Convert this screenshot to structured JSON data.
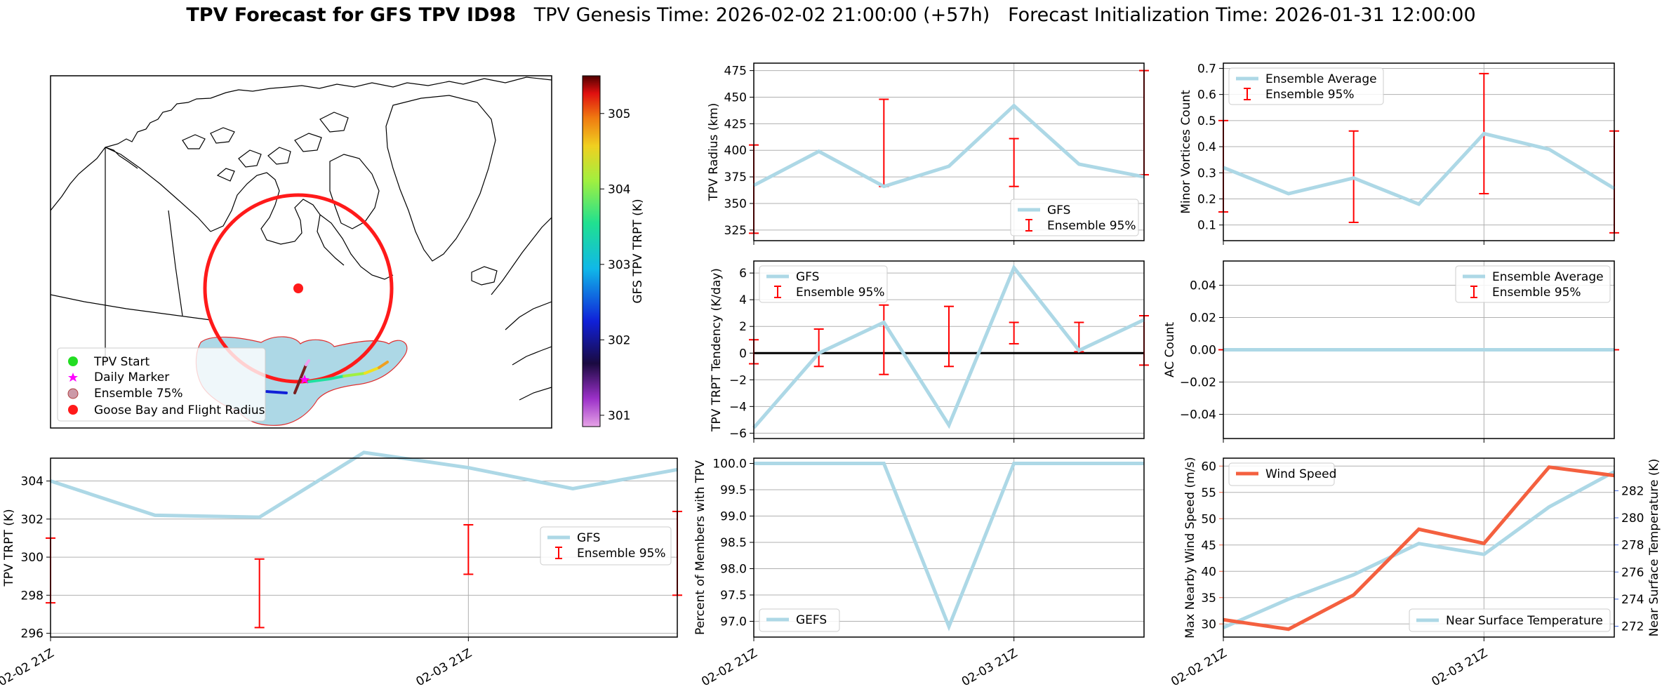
{
  "title": {
    "main": "TPV Forecast for GFS TPV ID98",
    "genesis": "TPV Genesis Time: 2026-02-02 21:00:00 (+57h)",
    "init": "Forecast Initialization Time: 2026-01-31 12:00:00"
  },
  "colors": {
    "gfs": "#add8e6",
    "ens": "#ff0000",
    "wind": "#f4603f",
    "temp_axis": "#4169e1",
    "zero": "#000000"
  },
  "chart_data": [
    {
      "id": "map",
      "type": "map",
      "legend": [
        "TPV Start",
        "Daily Marker",
        "Ensemble 75%",
        "Goose Bay and Flight Radius"
      ],
      "colorbar": {
        "label": "GFS TPV TRPT (K)",
        "range": [
          300.85,
          305.5
        ],
        "ticks": [
          "301",
          "302",
          "303",
          "304",
          "305"
        ]
      }
    },
    {
      "id": "radius",
      "type": "line",
      "ylabel": "TPV Radius (km)",
      "ylim": [
        315,
        482
      ],
      "yticks": [
        "325",
        "350",
        "375",
        "400",
        "425",
        "450",
        "475"
      ],
      "x": [
        0,
        1,
        2,
        3,
        4,
        5,
        6
      ],
      "series": [
        {
          "name": "GFS",
          "values": [
            367,
            399,
            366,
            385,
            442,
            387,
            375
          ]
        }
      ],
      "errorbars": {
        "name": "Ensemble 95%",
        "x": [
          0,
          2,
          4,
          6
        ],
        "low": [
          322,
          366,
          366,
          377
        ],
        "high": [
          405,
          448,
          411,
          475
        ]
      },
      "legend": [
        "GFS",
        "Ensemble 95%"
      ]
    },
    {
      "id": "minor",
      "type": "line",
      "ylabel": "Minor Vortices Count",
      "ylim": [
        0.04,
        0.72
      ],
      "yticks": [
        "0.1",
        "0.2",
        "0.3",
        "0.4",
        "0.5",
        "0.6",
        "0.7"
      ],
      "x": [
        0,
        1,
        2,
        3,
        4,
        5,
        6
      ],
      "series": [
        {
          "name": "Ensemble Average",
          "values": [
            0.32,
            0.22,
            0.28,
            0.18,
            0.45,
            0.39,
            0.24
          ]
        }
      ],
      "errorbars": {
        "name": "Ensemble 95%",
        "x": [
          0,
          2,
          4,
          6
        ],
        "low": [
          0.15,
          0.11,
          0.22,
          0.07
        ],
        "high": [
          0.5,
          0.46,
          0.68,
          0.46
        ]
      },
      "legend": [
        "Ensemble Average",
        "Ensemble 95%"
      ]
    },
    {
      "id": "tendency",
      "type": "line",
      "ylabel": "TPV TRPT Tendency (K/day)",
      "ylim": [
        -6.4,
        6.9
      ],
      "yticks": [
        "−6",
        "−4",
        "−2",
        "0",
        "2",
        "4",
        "6"
      ],
      "x": [
        0,
        1,
        2,
        3,
        4,
        5,
        6
      ],
      "series": [
        {
          "name": "GFS",
          "values": [
            -5.6,
            0.0,
            2.3,
            -5.4,
            6.4,
            0.2,
            2.5
          ]
        }
      ],
      "errorbars": {
        "name": "Ensemble 95%",
        "x": [
          0,
          1,
          2,
          3,
          4,
          5,
          6
        ],
        "low": [
          -0.8,
          -1.0,
          -1.6,
          -1.0,
          0.7,
          0.1,
          -0.9
        ],
        "high": [
          1.0,
          1.8,
          3.6,
          3.5,
          2.3,
          2.3,
          2.8
        ]
      },
      "legend": [
        "GFS",
        "Ensemble 95%"
      ]
    },
    {
      "id": "ac",
      "type": "line",
      "ylabel": "AC Count",
      "ylim": [
        -0.055,
        0.055
      ],
      "yticks": [
        "−0.04",
        "−0.02",
        "0.00",
        "0.02",
        "0.04"
      ],
      "x": [
        0,
        1,
        2,
        3,
        4,
        5,
        6
      ],
      "series": [
        {
          "name": "Ensemble Average",
          "values": [
            0,
            0,
            0,
            0,
            0,
            0,
            0
          ]
        }
      ],
      "errorbars": {
        "name": "Ensemble 95%",
        "x": [
          0,
          2,
          4,
          6
        ],
        "low": [
          0,
          0,
          0,
          0
        ],
        "high": [
          0,
          0,
          0,
          0
        ]
      },
      "legend": [
        "Ensemble Average",
        "Ensemble 95%"
      ]
    },
    {
      "id": "trpt",
      "type": "line",
      "ylabel": "TPV TRPT (K)",
      "ylim": [
        295.8,
        305.2
      ],
      "yticks": [
        "296",
        "298",
        "300",
        "302",
        "304"
      ],
      "x": [
        0,
        1,
        2,
        3,
        4,
        5,
        6
      ],
      "series": [
        {
          "name": "GFS",
          "values": [
            304.0,
            302.2,
            302.1,
            305.5,
            304.7,
            303.6,
            304.6
          ]
        }
      ],
      "errorbars": {
        "name": "Ensemble 95%",
        "x": [
          0,
          2,
          4,
          6
        ],
        "low": [
          297.6,
          296.3,
          299.1,
          298.0
        ],
        "high": [
          301.0,
          299.9,
          301.7,
          302.4
        ]
      },
      "legend": [
        "GFS",
        "Ensemble 95%"
      ],
      "xticks": [
        "02-02 21Z",
        "02-03 21Z"
      ]
    },
    {
      "id": "percent",
      "type": "line",
      "ylabel": "Percent of Members with TPV",
      "ylim": [
        96.7,
        100.1
      ],
      "yticks": [
        "97.0",
        "97.5",
        "98.0",
        "98.5",
        "99.0",
        "99.5",
        "100.0"
      ],
      "x": [
        0,
        1,
        2,
        3,
        4,
        5,
        6
      ],
      "series": [
        {
          "name": "GEFS",
          "values": [
            100,
            100,
            100,
            96.9,
            100,
            100,
            100
          ]
        }
      ],
      "legend": [
        "GEFS"
      ],
      "xticks": [
        "02-02 21Z",
        "02-03 21Z"
      ]
    },
    {
      "id": "wind",
      "type": "line",
      "ylabel": "Max Nearby Wind Speed (m/s)",
      "ylabel2": "Near Surface Temperature (K)",
      "ylim": [
        27.5,
        61.5
      ],
      "ylim2": [
        271.2,
        284.4
      ],
      "yticks": [
        "30",
        "35",
        "40",
        "45",
        "50",
        "55",
        "60"
      ],
      "yticks2": [
        "272",
        "274",
        "276",
        "278",
        "280",
        "282"
      ],
      "x": [
        0,
        1,
        2,
        3,
        4,
        5,
        6
      ],
      "series": [
        {
          "name": "Wind Speed",
          "values": [
            30.8,
            29.0,
            35.5,
            48.0,
            45.3,
            59.8,
            58.2
          ]
        },
        {
          "name": "Near Surface Temperature",
          "values": [
            271.9,
            274.0,
            275.8,
            278.1,
            277.3,
            280.8,
            283.4
          ]
        }
      ],
      "legend": [
        "Wind Speed",
        "Near Surface Temperature"
      ],
      "xticks": [
        "02-02 21Z",
        "02-03 21Z"
      ]
    }
  ]
}
